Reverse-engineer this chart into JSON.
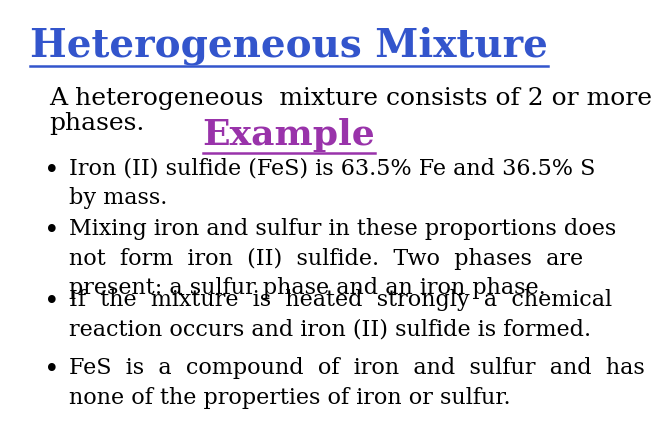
{
  "title": "Heterogeneous Mixture",
  "title_color": "#3355cc",
  "title_fontsize": 28,
  "subtitle_line1": "A heterogeneous  mixture consists of 2 or more",
  "subtitle_line2": "phases.",
  "subtitle_color": "#000000",
  "subtitle_fontsize": 18,
  "example_label": "Example",
  "example_color": "#9933aa",
  "example_fontsize": 26,
  "bullets": [
    "Iron (II) sulfide (FeS) is 63.5% Fe and 36.5% S\nby mass.",
    "Mixing iron and sulfur in these proportions does\nnot  form  iron  (II)  sulfide.  Two  phases  are\npresent: a sulfur phase and an iron phase.",
    "If  the  mixture  is  heated  strongly  a  chemical\nreaction occurs and iron (II) sulfide is formed.",
    "FeS  is  a  compound  of  iron  and  sulfur  and  has\nnone of the properties of iron or sulfur."
  ],
  "bullet_color": "#000000",
  "bullet_fontsize": 16,
  "background_color": "#ffffff"
}
